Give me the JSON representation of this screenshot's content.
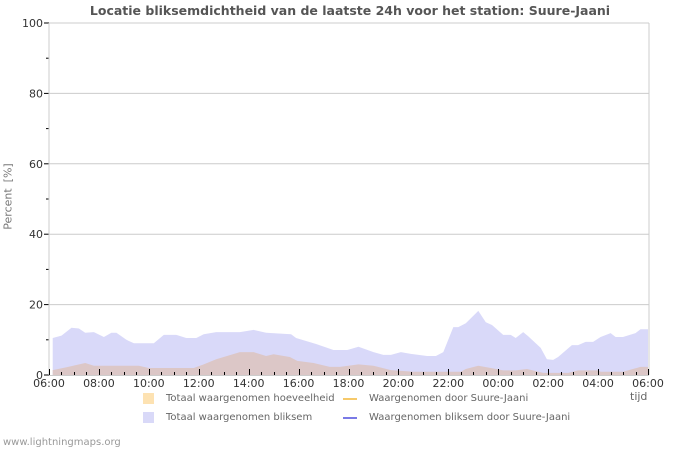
{
  "header": {
    "title": "Locatie bliksemdichtheid van de laatste 24h voor het station: Suure-Jaani"
  },
  "axes": {
    "y_label": "Percent",
    "y_unit": "[%]",
    "x_label": "tijd"
  },
  "legend": [
    {
      "label": "Totaal waargenomen hoeveelheid",
      "kind": "square",
      "color": "#fde2b2"
    },
    {
      "label": "Waargenomen door Suure-Jaani",
      "kind": "line",
      "color": "#f6c96a"
    },
    {
      "label": "Totaal waargenomen bliksem",
      "kind": "square",
      "color": "#d9d9f8"
    },
    {
      "label": "Waargenomen bliksem door Suure-Jaani",
      "kind": "line",
      "color": "#7a7ae6"
    }
  ],
  "footer": {
    "source": "www.lightningmaps.org"
  },
  "colors": {
    "blue_fill": "#d9d9f9",
    "red_fill": "#dcc7c7",
    "grid": "#cccccc",
    "tick": "#000000"
  },
  "chart_data": {
    "type": "area",
    "title": "Locatie bliksemdichtheid van de laatste 24h voor het station: Suure-Jaani",
    "xlabel": "tijd",
    "ylabel": "Percent [%]",
    "ylim": [
      0,
      100
    ],
    "yticks": [
      0,
      20,
      40,
      60,
      80,
      100
    ],
    "xticks": [
      "06:00",
      "08:00",
      "10:00",
      "12:00",
      "14:00",
      "16:00",
      "18:00",
      "20:00",
      "22:00",
      "00:00",
      "02:00",
      "04:00",
      "06:00"
    ],
    "xrange_hours": [
      0,
      24
    ],
    "grid": true,
    "legend_position": "bottom",
    "series": [
      {
        "name": "Totaal waargenomen bliksem",
        "color": "#d9d9f9",
        "points": [
          [
            0.15,
            10.5
          ],
          [
            0.5,
            11.2
          ],
          [
            0.9,
            13.4
          ],
          [
            1.2,
            13.2
          ],
          [
            1.45,
            12.0
          ],
          [
            1.8,
            12.2
          ],
          [
            2.2,
            10.8
          ],
          [
            2.5,
            12.0
          ],
          [
            2.7,
            12.0
          ],
          [
            3.1,
            10.0
          ],
          [
            3.4,
            9.0
          ],
          [
            4.2,
            9.0
          ],
          [
            4.6,
            11.4
          ],
          [
            5.1,
            11.4
          ],
          [
            5.5,
            10.5
          ],
          [
            5.9,
            10.5
          ],
          [
            6.2,
            11.6
          ],
          [
            6.7,
            12.2
          ],
          [
            7.65,
            12.2
          ],
          [
            8.2,
            12.8
          ],
          [
            8.7,
            12.0
          ],
          [
            9.7,
            11.6
          ],
          [
            9.9,
            10.5
          ],
          [
            10.7,
            8.8
          ],
          [
            11.4,
            7.1
          ],
          [
            11.95,
            7.1
          ],
          [
            12.4,
            8.0
          ],
          [
            13.0,
            6.5
          ],
          [
            13.4,
            5.7
          ],
          [
            13.7,
            5.7
          ],
          [
            14.1,
            6.5
          ],
          [
            14.5,
            6.0
          ],
          [
            15.15,
            5.4
          ],
          [
            15.5,
            5.4
          ],
          [
            15.8,
            6.5
          ],
          [
            16.2,
            13.6
          ],
          [
            16.4,
            13.6
          ],
          [
            16.7,
            14.7
          ],
          [
            17.2,
            18.2
          ],
          [
            17.5,
            15.0
          ],
          [
            17.75,
            14.2
          ],
          [
            18.2,
            11.4
          ],
          [
            18.5,
            11.4
          ],
          [
            18.7,
            10.5
          ],
          [
            19.0,
            12.2
          ],
          [
            19.2,
            11.0
          ],
          [
            19.7,
            7.7
          ],
          [
            19.95,
            4.5
          ],
          [
            20.2,
            4.3
          ],
          [
            20.4,
            5.1
          ],
          [
            20.95,
            8.5
          ],
          [
            21.2,
            8.5
          ],
          [
            21.5,
            9.4
          ],
          [
            21.8,
            9.4
          ],
          [
            22.1,
            10.8
          ],
          [
            22.5,
            11.9
          ],
          [
            22.7,
            10.8
          ],
          [
            23.0,
            10.8
          ],
          [
            23.5,
            11.9
          ],
          [
            23.7,
            13.0
          ],
          [
            24.0,
            13.0
          ]
        ]
      },
      {
        "name": "Totaal waargenomen hoeveelheid (overlap)",
        "color": "#dcc7c7",
        "points": [
          [
            0.15,
            1.4
          ],
          [
            0.7,
            2.2
          ],
          [
            1.45,
            3.4
          ],
          [
            1.8,
            2.6
          ],
          [
            3.6,
            2.6
          ],
          [
            4.0,
            2.0
          ],
          [
            5.8,
            2.0
          ],
          [
            6.2,
            3.0
          ],
          [
            6.7,
            4.5
          ],
          [
            7.65,
            6.5
          ],
          [
            8.2,
            6.5
          ],
          [
            8.7,
            5.4
          ],
          [
            9.0,
            5.9
          ],
          [
            9.65,
            5.1
          ],
          [
            9.95,
            4.0
          ],
          [
            10.6,
            3.4
          ],
          [
            11.25,
            2.3
          ],
          [
            11.65,
            2.3
          ],
          [
            12.4,
            3.0
          ],
          [
            13.0,
            2.6
          ],
          [
            13.7,
            1.4
          ],
          [
            14.6,
            0.9
          ],
          [
            16.5,
            0.9
          ],
          [
            16.7,
            1.7
          ],
          [
            17.2,
            2.6
          ],
          [
            17.7,
            2.0
          ],
          [
            18.2,
            1.3
          ],
          [
            18.7,
            1.3
          ],
          [
            19.15,
            1.7
          ],
          [
            19.8,
            0.6
          ],
          [
            20.8,
            0.6
          ],
          [
            21.2,
            1.3
          ],
          [
            22.0,
            1.3
          ],
          [
            22.1,
            0.9
          ],
          [
            23.0,
            0.9
          ],
          [
            23.7,
            2.3
          ],
          [
            24.0,
            2.3
          ]
        ]
      }
    ]
  }
}
